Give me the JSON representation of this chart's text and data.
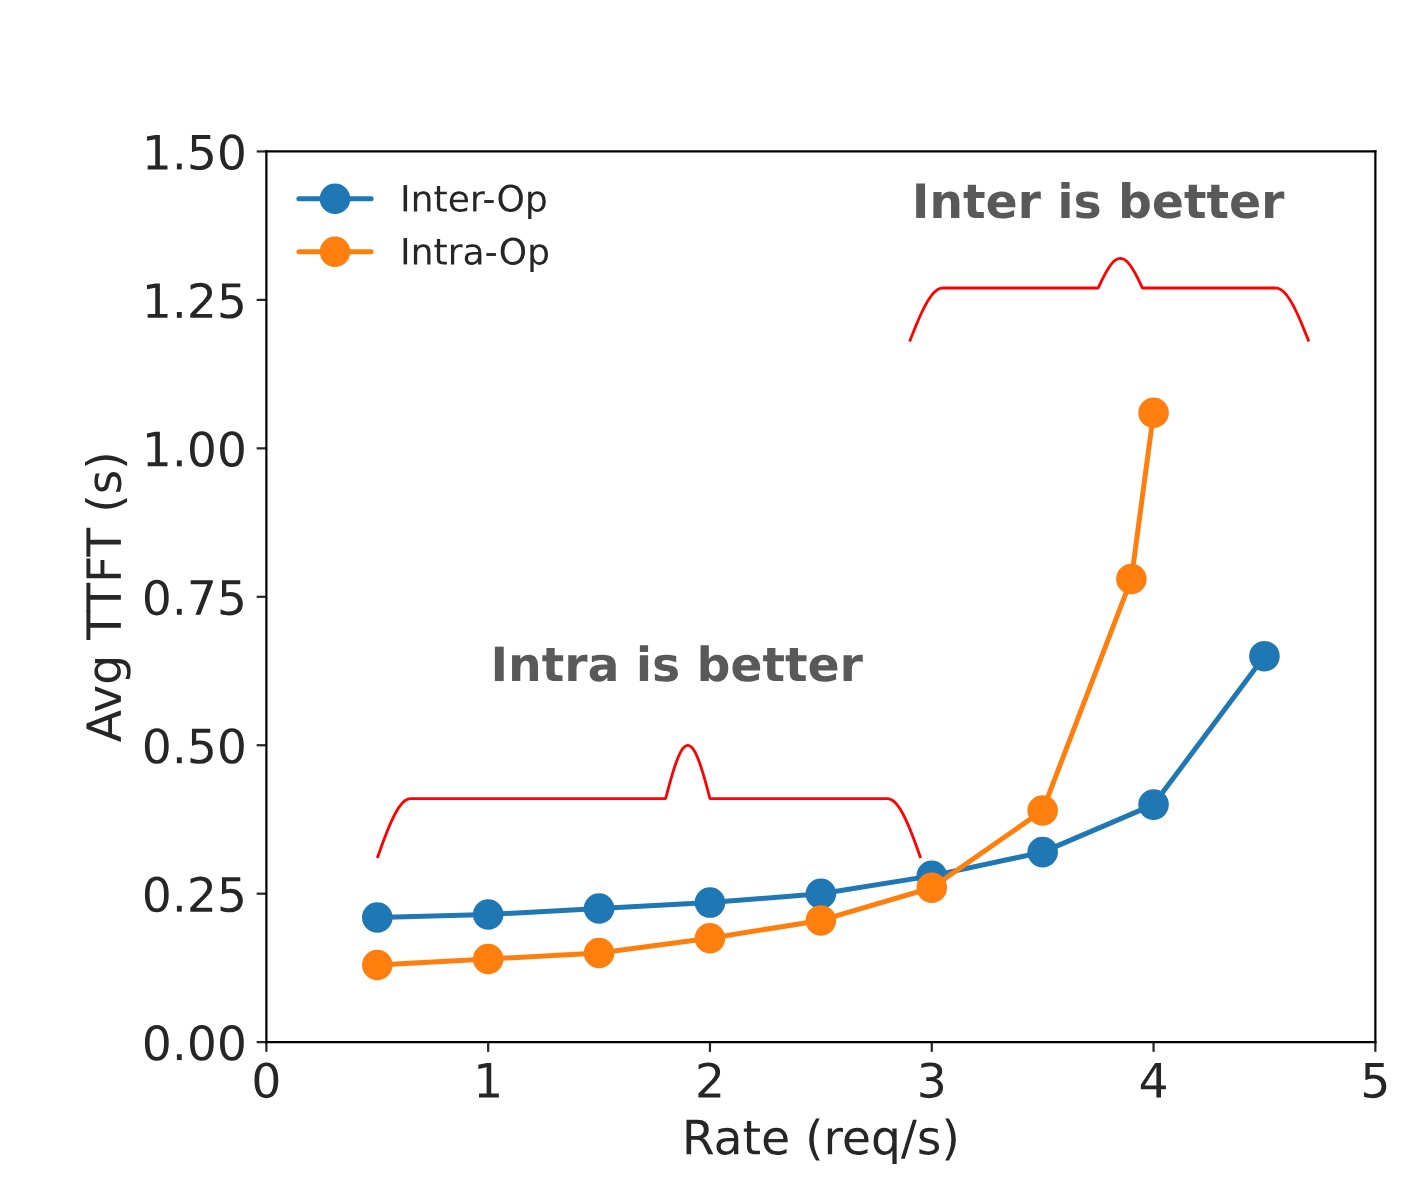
{
  "chart_data": {
    "type": "line",
    "xlabel": "Rate (req/s)",
    "ylabel": "Avg TTFT (s)",
    "xlim": [
      0,
      5
    ],
    "xticks": [
      0,
      1,
      2,
      3,
      4,
      5
    ],
    "ylim": [
      0,
      1.5
    ],
    "yticks": [
      {
        "value": 0,
        "label": "0.00"
      },
      {
        "value": 0.25,
        "label": "0.25"
      },
      {
        "value": 0.5,
        "label": "0.50"
      },
      {
        "value": 0.75,
        "label": "0.75"
      },
      {
        "value": 1,
        "label": "1.00"
      },
      {
        "value": 1.25,
        "label": "1.25"
      },
      {
        "value": 1.5,
        "label": "1.50"
      }
    ],
    "series": [
      {
        "name": "Inter-Op",
        "color": "#1f77b4",
        "x": [
          0.5,
          1,
          1.5,
          2,
          2.5,
          3,
          3.5,
          4,
          4.5
        ],
        "values": [
          0.21,
          0.215,
          0.225,
          0.235,
          0.25,
          0.28,
          0.32,
          0.4,
          0.65
        ]
      },
      {
        "name": "Intra-Op",
        "color": "#ff7f0e",
        "x": [
          0.5,
          1,
          1.5,
          2,
          2.5,
          3,
          3.5,
          3.9,
          4
        ],
        "values": [
          0.13,
          0.14,
          0.15,
          0.175,
          0.205,
          0.26,
          0.39,
          0.78,
          1.06
        ]
      }
    ],
    "annotations": [
      "Intra is better",
      "Inter is better"
    ],
    "marker": "circle",
    "line_style": "solid",
    "legend": "top left",
    "grid": false
  }
}
